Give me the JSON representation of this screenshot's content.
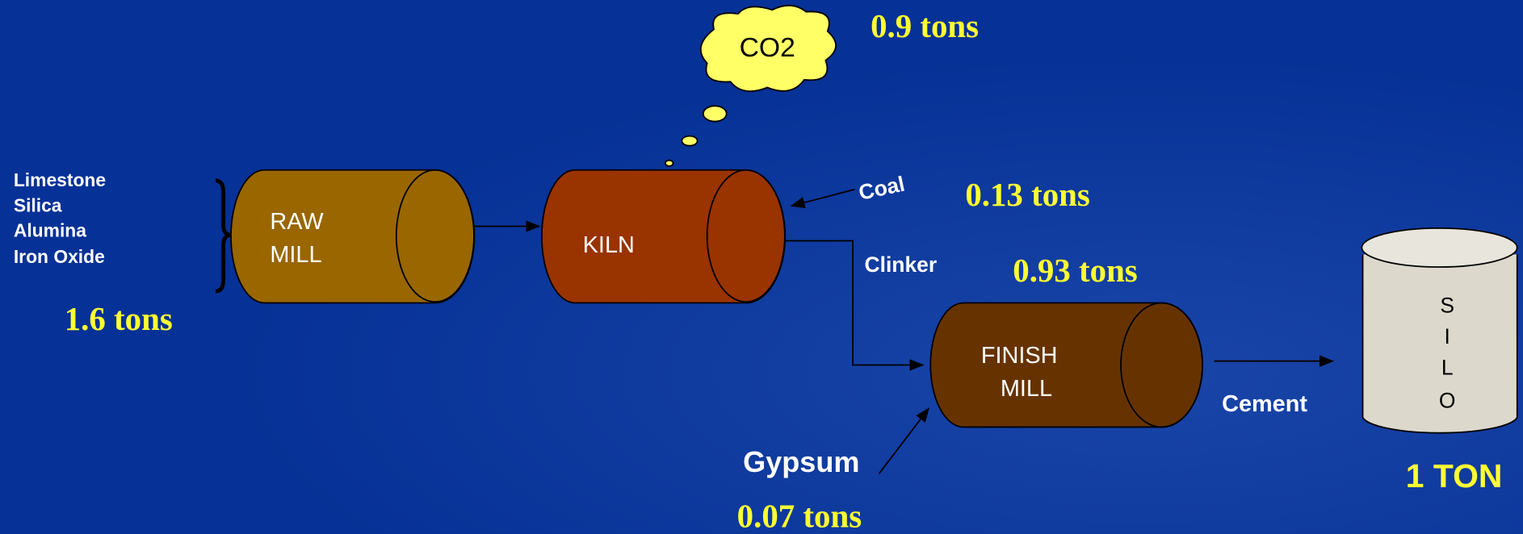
{
  "inputs": {
    "items": [
      "Limestone",
      "Silica",
      "Alumina",
      "Iron Oxide"
    ],
    "amount": "1.6 tons"
  },
  "nodes": [
    {
      "lines": [
        "RAW",
        "MILL"
      ]
    },
    {
      "lines": [
        "KILN"
      ]
    },
    {
      "lines": [
        "FINISH",
        "MILL"
      ]
    },
    {
      "lines": [
        "S",
        "I",
        "L",
        "O"
      ]
    }
  ],
  "co2": {
    "label": "CO2",
    "amount": "0.9 tons"
  },
  "coal": {
    "label": "Coal",
    "amount": "0.13 tons"
  },
  "clinker": {
    "label": "Clinker",
    "amount": "0.93 tons"
  },
  "gypsum": {
    "label": "Gypsum",
    "amount": "0.07 tons"
  },
  "cement": {
    "label": "Cement"
  },
  "output": {
    "amount": "1 TON"
  }
}
